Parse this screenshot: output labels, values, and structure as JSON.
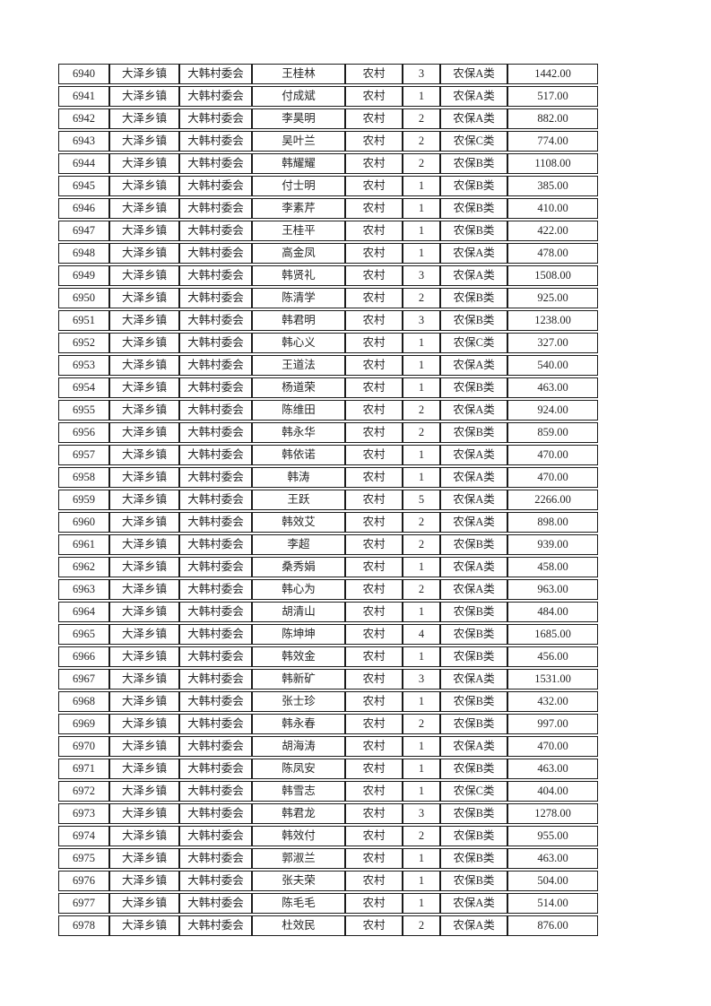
{
  "page": {
    "background_color": "#ffffff",
    "grid_border_color": "#1c1c1c",
    "text_color": "#262626"
  },
  "table": {
    "column_names": [
      "serial-number",
      "township",
      "village-committee",
      "person-name",
      "household-type",
      "person-count",
      "insurance-category",
      "amount"
    ],
    "rows": [
      [
        "6940",
        "大泽乡镇",
        "大韩村委会",
        "王桂林",
        "农村",
        "3",
        "农保A类",
        "1442.00"
      ],
      [
        "6941",
        "大泽乡镇",
        "大韩村委会",
        "付成斌",
        "农村",
        "1",
        "农保A类",
        "517.00"
      ],
      [
        "6942",
        "大泽乡镇",
        "大韩村委会",
        "李昊明",
        "农村",
        "2",
        "农保A类",
        "882.00"
      ],
      [
        "6943",
        "大泽乡镇",
        "大韩村委会",
        "吴叶兰",
        "农村",
        "2",
        "农保C类",
        "774.00"
      ],
      [
        "6944",
        "大泽乡镇",
        "大韩村委会",
        "韩耀耀",
        "农村",
        "2",
        "农保B类",
        "1108.00"
      ],
      [
        "6945",
        "大泽乡镇",
        "大韩村委会",
        "付士明",
        "农村",
        "1",
        "农保B类",
        "385.00"
      ],
      [
        "6946",
        "大泽乡镇",
        "大韩村委会",
        "李素芹",
        "农村",
        "1",
        "农保B类",
        "410.00"
      ],
      [
        "6947",
        "大泽乡镇",
        "大韩村委会",
        "王桂平",
        "农村",
        "1",
        "农保B类",
        "422.00"
      ],
      [
        "6948",
        "大泽乡镇",
        "大韩村委会",
        "高金凤",
        "农村",
        "1",
        "农保A类",
        "478.00"
      ],
      [
        "6949",
        "大泽乡镇",
        "大韩村委会",
        "韩贤礼",
        "农村",
        "3",
        "农保A类",
        "1508.00"
      ],
      [
        "6950",
        "大泽乡镇",
        "大韩村委会",
        "陈清学",
        "农村",
        "2",
        "农保B类",
        "925.00"
      ],
      [
        "6951",
        "大泽乡镇",
        "大韩村委会",
        "韩君明",
        "农村",
        "3",
        "农保B类",
        "1238.00"
      ],
      [
        "6952",
        "大泽乡镇",
        "大韩村委会",
        "韩心义",
        "农村",
        "1",
        "农保C类",
        "327.00"
      ],
      [
        "6953",
        "大泽乡镇",
        "大韩村委会",
        "王道法",
        "农村",
        "1",
        "农保A类",
        "540.00"
      ],
      [
        "6954",
        "大泽乡镇",
        "大韩村委会",
        "杨道荣",
        "农村",
        "1",
        "农保B类",
        "463.00"
      ],
      [
        "6955",
        "大泽乡镇",
        "大韩村委会",
        "陈维田",
        "农村",
        "2",
        "农保A类",
        "924.00"
      ],
      [
        "6956",
        "大泽乡镇",
        "大韩村委会",
        "韩永华",
        "农村",
        "2",
        "农保B类",
        "859.00"
      ],
      [
        "6957",
        "大泽乡镇",
        "大韩村委会",
        "韩依诺",
        "农村",
        "1",
        "农保A类",
        "470.00"
      ],
      [
        "6958",
        "大泽乡镇",
        "大韩村委会",
        "韩涛",
        "农村",
        "1",
        "农保A类",
        "470.00"
      ],
      [
        "6959",
        "大泽乡镇",
        "大韩村委会",
        "王跃",
        "农村",
        "5",
        "农保A类",
        "2266.00"
      ],
      [
        "6960",
        "大泽乡镇",
        "大韩村委会",
        "韩效艾",
        "农村",
        "2",
        "农保A类",
        "898.00"
      ],
      [
        "6961",
        "大泽乡镇",
        "大韩村委会",
        "李超",
        "农村",
        "2",
        "农保B类",
        "939.00"
      ],
      [
        "6962",
        "大泽乡镇",
        "大韩村委会",
        "桑秀娟",
        "农村",
        "1",
        "农保A类",
        "458.00"
      ],
      [
        "6963",
        "大泽乡镇",
        "大韩村委会",
        "韩心为",
        "农村",
        "2",
        "农保A类",
        "963.00"
      ],
      [
        "6964",
        "大泽乡镇",
        "大韩村委会",
        "胡清山",
        "农村",
        "1",
        "农保B类",
        "484.00"
      ],
      [
        "6965",
        "大泽乡镇",
        "大韩村委会",
        "陈坤坤",
        "农村",
        "4",
        "农保B类",
        "1685.00"
      ],
      [
        "6966",
        "大泽乡镇",
        "大韩村委会",
        "韩效金",
        "农村",
        "1",
        "农保B类",
        "456.00"
      ],
      [
        "6967",
        "大泽乡镇",
        "大韩村委会",
        "韩新矿",
        "农村",
        "3",
        "农保A类",
        "1531.00"
      ],
      [
        "6968",
        "大泽乡镇",
        "大韩村委会",
        "张士珍",
        "农村",
        "1",
        "农保B类",
        "432.00"
      ],
      [
        "6969",
        "大泽乡镇",
        "大韩村委会",
        "韩永春",
        "农村",
        "2",
        "农保B类",
        "997.00"
      ],
      [
        "6970",
        "大泽乡镇",
        "大韩村委会",
        "胡海涛",
        "农村",
        "1",
        "农保A类",
        "470.00"
      ],
      [
        "6971",
        "大泽乡镇",
        "大韩村委会",
        "陈凤安",
        "农村",
        "1",
        "农保B类",
        "463.00"
      ],
      [
        "6972",
        "大泽乡镇",
        "大韩村委会",
        "韩雪志",
        "农村",
        "1",
        "农保C类",
        "404.00"
      ],
      [
        "6973",
        "大泽乡镇",
        "大韩村委会",
        "韩君龙",
        "农村",
        "3",
        "农保B类",
        "1278.00"
      ],
      [
        "6974",
        "大泽乡镇",
        "大韩村委会",
        "韩效付",
        "农村",
        "2",
        "农保B类",
        "955.00"
      ],
      [
        "6975",
        "大泽乡镇",
        "大韩村委会",
        "郭淑兰",
        "农村",
        "1",
        "农保B类",
        "463.00"
      ],
      [
        "6976",
        "大泽乡镇",
        "大韩村委会",
        "张夫荣",
        "农村",
        "1",
        "农保B类",
        "504.00"
      ],
      [
        "6977",
        "大泽乡镇",
        "大韩村委会",
        "陈毛毛",
        "农村",
        "1",
        "农保A类",
        "514.00"
      ],
      [
        "6978",
        "大泽乡镇",
        "大韩村委会",
        "杜效民",
        "农村",
        "2",
        "农保A类",
        "876.00"
      ]
    ]
  }
}
